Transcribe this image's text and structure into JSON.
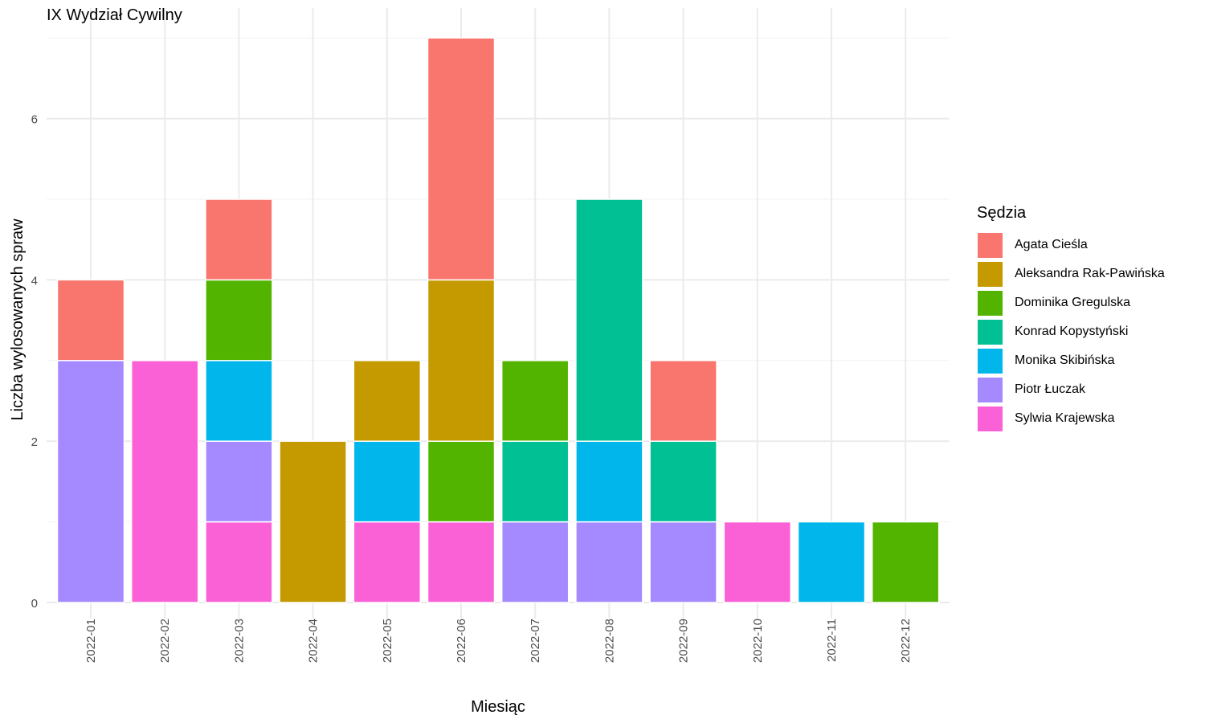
{
  "chart_data": {
    "type": "bar",
    "stacked": true,
    "title": "IX Wydział Cywilny",
    "xlabel": "Miesiąc",
    "ylabel": "Liczba wylosowanych spraw",
    "legend_title": "Sędzia",
    "legend_position": "right",
    "grid": true,
    "ylim": [
      0,
      7
    ],
    "yticks": [
      0,
      2,
      4,
      6
    ],
    "categories": [
      "2022-01",
      "2022-02",
      "2022-03",
      "2022-04",
      "2022-05",
      "2022-06",
      "2022-07",
      "2022-08",
      "2022-09",
      "2022-10",
      "2022-11",
      "2022-12"
    ],
    "stack_order_bottom_to_top": [
      "Sylwia Krajewska",
      "Piotr Łuczak",
      "Monika Skibińska",
      "Konrad Kopystyński",
      "Dominika Gregulska",
      "Aleksandra Rak-Pawińska",
      "Agata Cieśla"
    ],
    "series": [
      {
        "name": "Agata Cieśla",
        "color": "#F8766D",
        "values": [
          1,
          0,
          1,
          0,
          0,
          3,
          0,
          0,
          1,
          0,
          0,
          0
        ]
      },
      {
        "name": "Aleksandra Rak-Pawińska",
        "color": "#C49A00",
        "values": [
          0,
          0,
          0,
          2,
          1,
          2,
          0,
          0,
          0,
          0,
          0,
          0
        ]
      },
      {
        "name": "Dominika Gregulska",
        "color": "#53B400",
        "values": [
          0,
          0,
          1,
          0,
          0,
          1,
          1,
          0,
          0,
          0,
          0,
          1
        ]
      },
      {
        "name": "Konrad Kopystyński",
        "color": "#00C094",
        "values": [
          0,
          0,
          0,
          0,
          0,
          0,
          1,
          3,
          1,
          0,
          0,
          0
        ]
      },
      {
        "name": "Monika Skibińska",
        "color": "#00B6EB",
        "values": [
          0,
          0,
          1,
          0,
          1,
          0,
          0,
          1,
          0,
          0,
          1,
          0
        ]
      },
      {
        "name": "Piotr Łuczak",
        "color": "#A58AFF",
        "values": [
          3,
          0,
          1,
          0,
          0,
          0,
          1,
          1,
          1,
          0,
          0,
          0
        ]
      },
      {
        "name": "Sylwia Krajewska",
        "color": "#FB61D7",
        "values": [
          0,
          3,
          1,
          0,
          1,
          1,
          0,
          0,
          0,
          1,
          0,
          0
        ]
      }
    ]
  }
}
